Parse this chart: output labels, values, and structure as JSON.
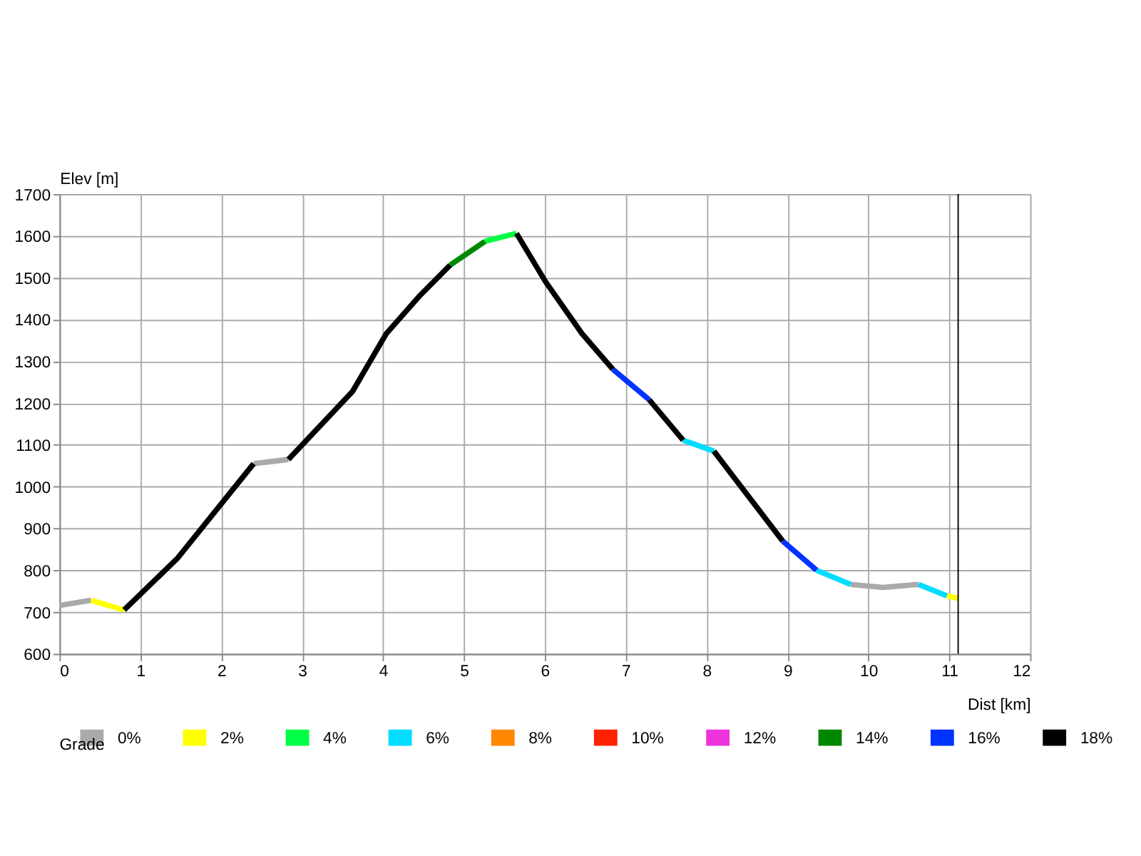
{
  "chart_data": {
    "type": "line",
    "xlabel": "Dist [km]",
    "ylabel": "Elev [m]",
    "legend_title": "Grade",
    "xlim": [
      0,
      12
    ],
    "xticks": [
      0,
      1,
      2,
      3,
      4,
      5,
      6,
      7,
      8,
      9,
      10,
      11,
      12
    ],
    "ylim": [
      600,
      1700
    ],
    "yticks": [
      600,
      700,
      800,
      900,
      1000,
      1100,
      1200,
      1300,
      1400,
      1500,
      1600,
      1700
    ],
    "grid": true,
    "legend": "bottom",
    "marker": "none",
    "line_style": "solid",
    "ref_lines": [
      {
        "axis": "x",
        "value": 11.11,
        "color": "#000000"
      }
    ],
    "series": [
      {
        "name": "0%",
        "color": "#aaaaaa",
        "x": [
          0,
          0.39,
          null,
          2.4,
          2.83,
          null,
          9.78,
          10.18,
          10.62
        ],
        "values": [
          716,
          728,
          null,
          1055,
          1065,
          null,
          766,
          759,
          766
        ]
      },
      {
        "name": "2%",
        "color": "#ffff00",
        "x": [
          0.39,
          0.8,
          null,
          10.97,
          11.11
        ],
        "values": [
          728,
          705,
          null,
          739,
          733
        ]
      },
      {
        "name": "4%",
        "color": "#00ff44",
        "x": [
          5.26,
          5.65
        ],
        "values": [
          1587,
          1606
        ]
      },
      {
        "name": "6%",
        "color": "#00ddff",
        "x": [
          7.71,
          8.09,
          null,
          9.36,
          9.78,
          null,
          10.62,
          10.97
        ],
        "values": [
          1111,
          1085,
          null,
          800,
          766,
          null,
          766,
          739
        ]
      },
      {
        "name": "8%",
        "color": "#ff8800"
      },
      {
        "name": "10%",
        "color": "#ff2200"
      },
      {
        "name": "12%",
        "color": "#ee33dd"
      },
      {
        "name": "14%",
        "color": "#008800",
        "x": [
          4.83,
          5.26
        ],
        "values": [
          1530,
          1587
        ]
      },
      {
        "name": "16%",
        "color": "#0033ff",
        "x": [
          6.84,
          7.29,
          null,
          8.94,
          9.36
        ],
        "values": [
          1281,
          1208,
          null,
          870,
          800
        ]
      },
      {
        "name": "18%",
        "color": "#000000",
        "x": [
          0.8,
          1.46,
          2.4,
          null,
          2.83,
          3.62,
          4.04,
          4.46,
          4.83,
          null,
          5.65,
          6.01,
          6.46,
          6.84,
          null,
          7.29,
          7.71,
          null,
          8.09,
          8.94
        ],
        "values": [
          705,
          829,
          1055,
          null,
          1065,
          1227,
          1366,
          1458,
          1530,
          null,
          1606,
          1490,
          1366,
          1281,
          null,
          1208,
          1111,
          null,
          1085,
          870
        ]
      }
    ]
  }
}
